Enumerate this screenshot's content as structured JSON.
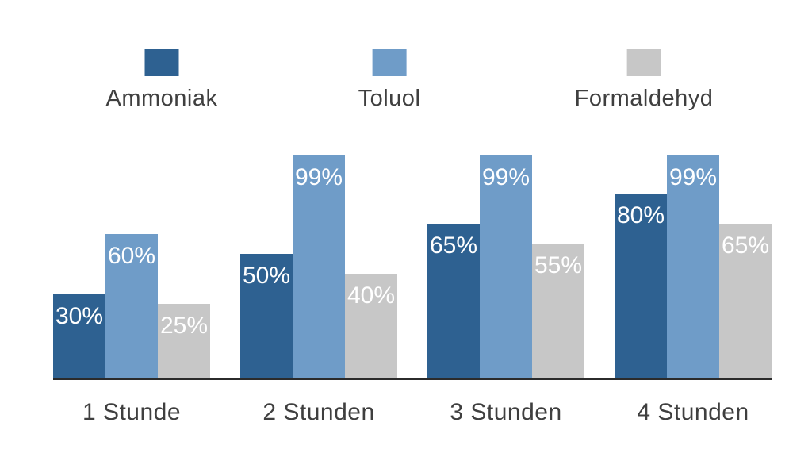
{
  "chart_data": {
    "type": "bar",
    "title": "",
    "xlabel": "",
    "ylabel": "",
    "ylim": [
      0,
      100
    ],
    "grid": false,
    "legend_position": "top",
    "categories": [
      "1 Stunde",
      "2 Stunden",
      "3 Stunden",
      "4 Stunden"
    ],
    "series": [
      {
        "name": "Ammoniak",
        "color": "#2e6191",
        "values": [
          30,
          50,
          65,
          80
        ],
        "labels": [
          "30%",
          "50%",
          "65%",
          "80%"
        ]
      },
      {
        "name": "Toluol",
        "color": "#6f9cc8",
        "values": [
          60,
          99,
          99,
          99
        ],
        "labels": [
          "60%",
          "99%",
          "99%",
          "99%"
        ]
      },
      {
        "name": "Formaldehyd",
        "color": "#c7c7c7",
        "values": [
          25,
          40,
          55,
          65
        ],
        "labels": [
          "25%",
          "40%",
          "55%",
          "65%"
        ]
      }
    ],
    "value_label_color": "#ffffff",
    "axis_line_color": "#2b2b2b",
    "text_color": "#3f3f3f",
    "background_color": "#ffffff"
  }
}
